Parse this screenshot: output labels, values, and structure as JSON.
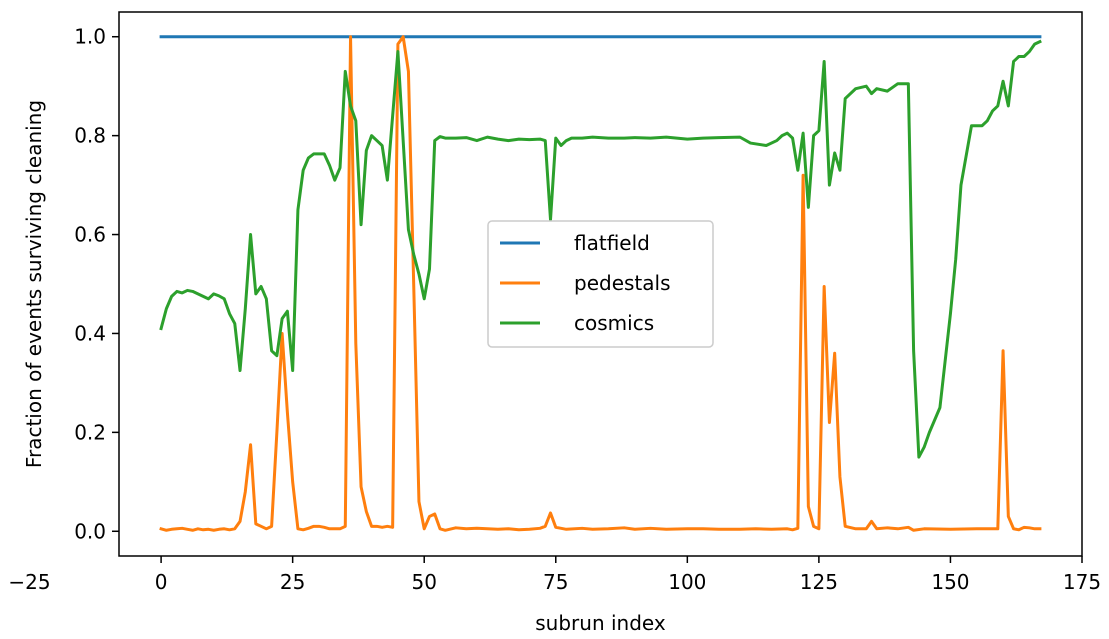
{
  "chart_data": {
    "type": "line",
    "title": "",
    "xlabel": "subrun index",
    "ylabel": "Fraction of events surviving cleaning",
    "xlim": [
      -8,
      175
    ],
    "ylim": [
      -0.05,
      1.05
    ],
    "xticks": [
      -25,
      0,
      25,
      50,
      75,
      100,
      125,
      150,
      175
    ],
    "xtick_labels": [
      "−25",
      "0",
      "25",
      "50",
      "75",
      "100",
      "125",
      "150",
      "175"
    ],
    "yticks": [
      0.0,
      0.2,
      0.4,
      0.6,
      0.8,
      1.0
    ],
    "ytick_labels": [
      "0.0",
      "0.2",
      "0.4",
      "0.6",
      "0.8",
      "1.0"
    ],
    "grid": false,
    "legend_position": "center",
    "series": [
      {
        "name": "flatfield",
        "color": "#1f77b4",
        "x": [
          0,
          167
        ],
        "y": [
          1.0,
          1.0
        ]
      },
      {
        "name": "pedestals",
        "color": "#ff7f0e",
        "x": [
          0,
          1,
          2,
          3,
          4,
          5,
          6,
          7,
          8,
          9,
          10,
          11,
          12,
          13,
          14,
          15,
          16,
          17,
          18,
          19,
          20,
          21,
          22,
          23,
          24,
          25,
          26,
          27,
          28,
          29,
          30,
          31,
          32,
          33,
          34,
          35,
          36,
          37,
          38,
          39,
          40,
          41,
          42,
          43,
          44,
          45,
          46,
          47,
          48,
          49,
          50,
          51,
          52,
          53,
          54,
          56,
          58,
          60,
          62,
          64,
          66,
          68,
          70,
          72,
          73,
          74,
          75,
          77,
          80,
          82,
          85,
          88,
          90,
          93,
          96,
          100,
          103,
          106,
          110,
          113,
          116,
          119,
          120,
          121,
          122,
          123,
          124,
          125,
          126,
          127,
          128,
          129,
          130,
          132,
          134,
          135,
          136,
          138,
          140,
          142,
          143,
          145,
          150,
          155,
          159,
          160,
          161,
          162,
          163,
          164,
          165,
          166,
          167
        ],
        "y": [
          0.005,
          0.002,
          0.004,
          0.005,
          0.006,
          0.004,
          0.002,
          0.005,
          0.003,
          0.004,
          0.002,
          0.004,
          0.005,
          0.003,
          0.005,
          0.02,
          0.08,
          0.175,
          0.015,
          0.01,
          0.005,
          0.01,
          0.2,
          0.4,
          0.24,
          0.1,
          0.005,
          0.003,
          0.006,
          0.01,
          0.01,
          0.008,
          0.005,
          0.005,
          0.005,
          0.01,
          1.0,
          0.38,
          0.09,
          0.04,
          0.01,
          0.01,
          0.008,
          0.01,
          0.008,
          0.985,
          1.0,
          0.93,
          0.5,
          0.06,
          0.005,
          0.03,
          0.035,
          0.005,
          0.002,
          0.007,
          0.005,
          0.006,
          0.005,
          0.004,
          0.005,
          0.003,
          0.004,
          0.006,
          0.01,
          0.037,
          0.008,
          0.004,
          0.006,
          0.004,
          0.005,
          0.007,
          0.004,
          0.006,
          0.004,
          0.005,
          0.005,
          0.004,
          0.004,
          0.005,
          0.004,
          0.005,
          0.003,
          0.006,
          0.72,
          0.05,
          0.01,
          0.005,
          0.495,
          0.22,
          0.36,
          0.11,
          0.01,
          0.005,
          0.005,
          0.02,
          0.005,
          0.007,
          0.005,
          0.008,
          0.002,
          0.005,
          0.004,
          0.005,
          0.005,
          0.365,
          0.03,
          0.005,
          0.003,
          0.008,
          0.007,
          0.005,
          0.005
        ]
      },
      {
        "name": "cosmics",
        "color": "#2ca02c",
        "x": [
          0,
          1,
          2,
          3,
          4,
          5,
          6,
          7,
          8,
          9,
          10,
          11,
          12,
          13,
          14,
          15,
          16,
          17,
          18,
          19,
          20,
          21,
          22,
          23,
          24,
          25,
          26,
          27,
          28,
          29,
          30,
          31,
          32,
          33,
          34,
          35,
          36,
          37,
          38,
          39,
          40,
          41,
          42,
          43,
          44,
          45,
          46,
          47,
          48,
          49,
          50,
          51,
          52,
          53,
          54,
          56,
          58,
          60,
          62,
          64,
          66,
          68,
          70,
          72,
          73,
          74,
          75,
          76,
          77,
          78,
          80,
          82,
          85,
          88,
          90,
          93,
          96,
          100,
          103,
          106,
          110,
          112,
          115,
          117,
          118,
          119,
          120,
          121,
          122,
          123,
          124,
          125,
          126,
          127,
          128,
          129,
          130,
          132,
          134,
          135,
          136,
          138,
          140,
          142,
          143,
          144,
          145,
          146,
          148,
          150,
          151,
          152,
          154,
          155,
          156,
          157,
          158,
          159,
          160,
          161,
          162,
          163,
          164,
          165,
          166,
          167
        ],
        "y": [
          0.41,
          0.45,
          0.475,
          0.485,
          0.482,
          0.487,
          0.485,
          0.48,
          0.475,
          0.47,
          0.48,
          0.476,
          0.47,
          0.44,
          0.42,
          0.325,
          0.45,
          0.6,
          0.48,
          0.495,
          0.47,
          0.365,
          0.355,
          0.43,
          0.445,
          0.325,
          0.65,
          0.73,
          0.755,
          0.763,
          0.763,
          0.763,
          0.74,
          0.71,
          0.735,
          0.93,
          0.86,
          0.83,
          0.62,
          0.77,
          0.8,
          0.79,
          0.78,
          0.71,
          0.84,
          0.97,
          0.79,
          0.61,
          0.56,
          0.52,
          0.47,
          0.53,
          0.79,
          0.798,
          0.795,
          0.795,
          0.796,
          0.79,
          0.797,
          0.793,
          0.79,
          0.793,
          0.792,
          0.793,
          0.79,
          0.63,
          0.795,
          0.78,
          0.79,
          0.795,
          0.795,
          0.797,
          0.795,
          0.795,
          0.796,
          0.795,
          0.797,
          0.793,
          0.795,
          0.796,
          0.797,
          0.785,
          0.78,
          0.79,
          0.8,
          0.805,
          0.795,
          0.73,
          0.805,
          0.655,
          0.8,
          0.81,
          0.95,
          0.7,
          0.765,
          0.73,
          0.875,
          0.895,
          0.9,
          0.885,
          0.895,
          0.89,
          0.905,
          0.905,
          0.365,
          0.15,
          0.17,
          0.2,
          0.25,
          0.44,
          0.55,
          0.7,
          0.82,
          0.82,
          0.82,
          0.83,
          0.85,
          0.86,
          0.91,
          0.86,
          0.95,
          0.96,
          0.96,
          0.97,
          0.985,
          0.99
        ]
      }
    ]
  }
}
